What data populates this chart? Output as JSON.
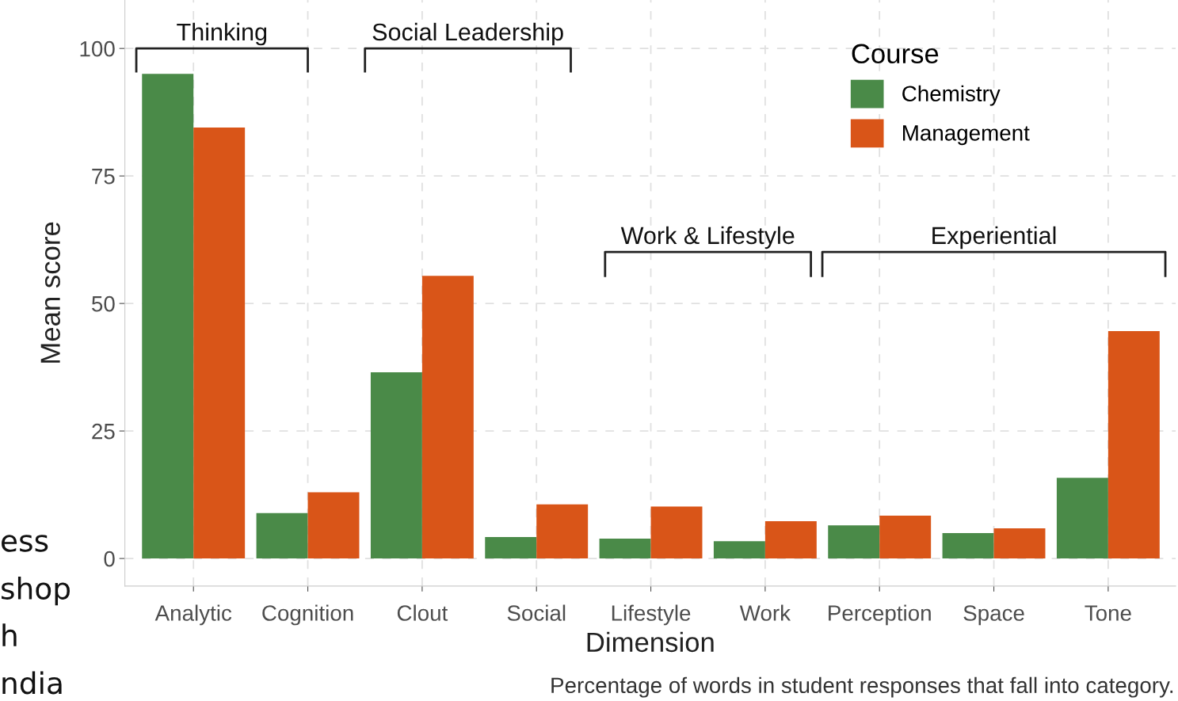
{
  "chart_data": {
    "type": "bar",
    "xlabel": "Dimension",
    "ylabel": "Mean score",
    "legend_title": "Course",
    "categories": [
      "Analytic",
      "Cognition",
      "Clout",
      "Social",
      "Lifestyle",
      "Work",
      "Perception",
      "Space",
      "Tone"
    ],
    "series": [
      {
        "name": "Chemistry",
        "color": "#4a8a48",
        "values": [
          95.0,
          8.9,
          36.5,
          4.2,
          3.9,
          3.4,
          6.5,
          5.0,
          15.8
        ]
      },
      {
        "name": "Management",
        "color": "#d95518",
        "values": [
          84.5,
          13.0,
          55.4,
          10.6,
          10.2,
          7.3,
          8.4,
          5.9,
          44.6
        ]
      }
    ],
    "ylim": [
      -5.4,
      109.5
    ],
    "yticks": [
      0,
      25,
      50,
      75,
      100
    ],
    "grid": true,
    "legend": "top right",
    "annotations": [
      "Thinking",
      "Social Leadership",
      "Work & Lifestyle",
      "Experiential",
      "Percentage of words in student responses that fall into category.",
      "ess",
      "shop",
      "h",
      "ndia"
    ]
  }
}
